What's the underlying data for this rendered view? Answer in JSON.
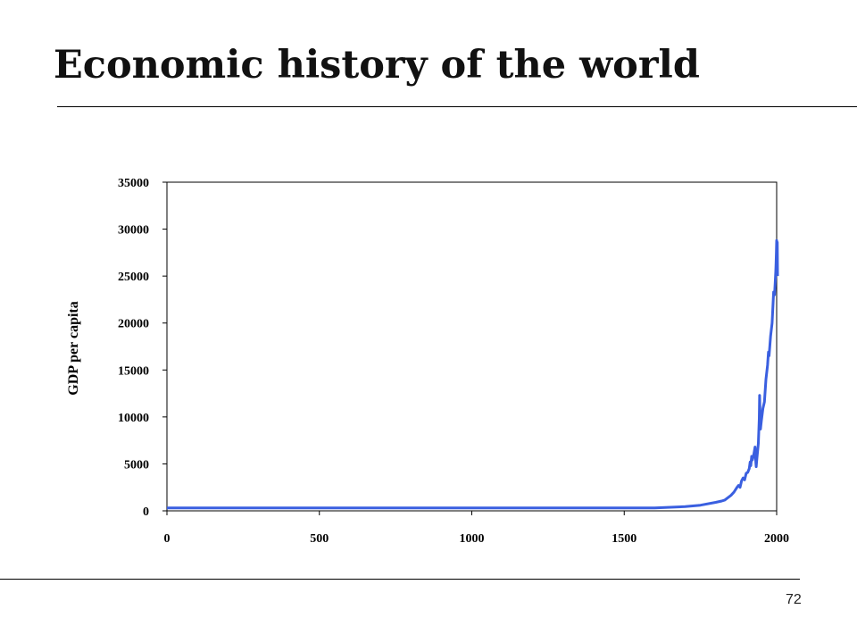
{
  "slide": {
    "title": "Economic history of the world",
    "page_number": "72"
  },
  "colors": {
    "series": "#3a5fe0",
    "axis": "#000000"
  },
  "chart_data": {
    "type": "line",
    "title": "",
    "xlabel": "",
    "ylabel": "GDP per capita",
    "xlim": [
      0,
      2000
    ],
    "ylim": [
      0,
      35000
    ],
    "xticks": [
      0,
      500,
      1000,
      1500,
      2000
    ],
    "yticks": [
      0,
      5000,
      10000,
      15000,
      20000,
      25000,
      30000,
      35000
    ],
    "grid": false,
    "legend": "none",
    "series": [
      {
        "x": [
          0,
          1000,
          1500,
          1600,
          1700,
          1750,
          1800,
          1820,
          1830,
          1850,
          1860,
          1870,
          1875,
          1880,
          1885,
          1890,
          1895,
          1900,
          1905,
          1910,
          1913,
          1915,
          1918,
          1920,
          1925,
          1929,
          1930,
          1932,
          1933,
          1935,
          1938,
          1940,
          1943,
          1944,
          1945,
          1946,
          1947,
          1948,
          1950,
          1955,
          1960,
          1965,
          1970,
          1973,
          1975,
          1980,
          1985,
          1990,
          1993,
          1995,
          1997,
          1998,
          1999,
          2000,
          2001,
          2002,
          2003
        ],
        "y": [
          300,
          300,
          300,
          310,
          450,
          600,
          900,
          1050,
          1150,
          1650,
          2000,
          2500,
          2700,
          2500,
          3200,
          3500,
          3300,
          4000,
          4100,
          4500,
          5200,
          4800,
          5800,
          5400,
          6000,
          6800,
          6000,
          5000,
          4700,
          5500,
          6500,
          7200,
          9800,
          12300,
          11200,
          9300,
          8700,
          9000,
          9600,
          10900,
          11600,
          14000,
          15500,
          16900,
          16500,
          18600,
          20000,
          23300,
          23000,
          24200,
          25500,
          26300,
          27600,
          28800,
          28500,
          28600,
          25000
        ]
      }
    ]
  }
}
